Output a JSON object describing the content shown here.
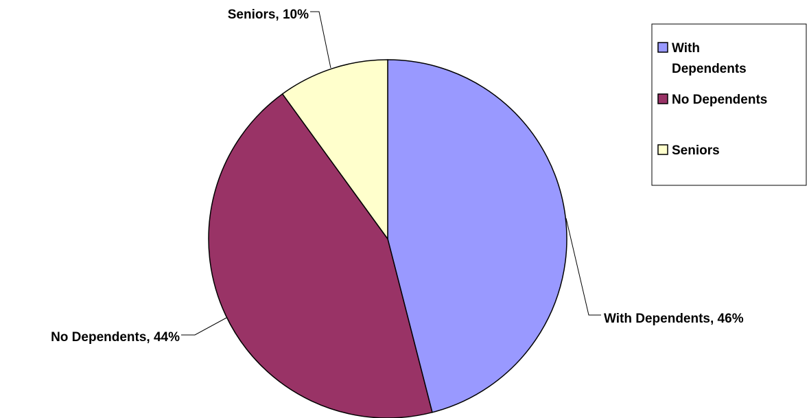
{
  "chart_data": {
    "type": "pie",
    "title": "",
    "start_angle_deg": 0,
    "direction": "clockwise",
    "slices": [
      {
        "name": "With Dependents",
        "value": 46,
        "label": "With Dependents, 46%",
        "color": "#9999ff"
      },
      {
        "name": "No Dependents",
        "value": 44,
        "label": "No Dependents, 44%",
        "color": "#993366"
      },
      {
        "name": "Seniors",
        "value": 10,
        "label": "Seniors, 10%",
        "color": "#ffffcc"
      }
    ],
    "legend": {
      "position": "right",
      "entries": [
        {
          "lines": [
            "With",
            "Dependents"
          ],
          "color": "#9999ff"
        },
        {
          "lines": [
            "No Dependents"
          ],
          "color": "#993366"
        },
        {
          "lines": [
            "Seniors"
          ],
          "color": "#ffffcc"
        }
      ]
    }
  }
}
